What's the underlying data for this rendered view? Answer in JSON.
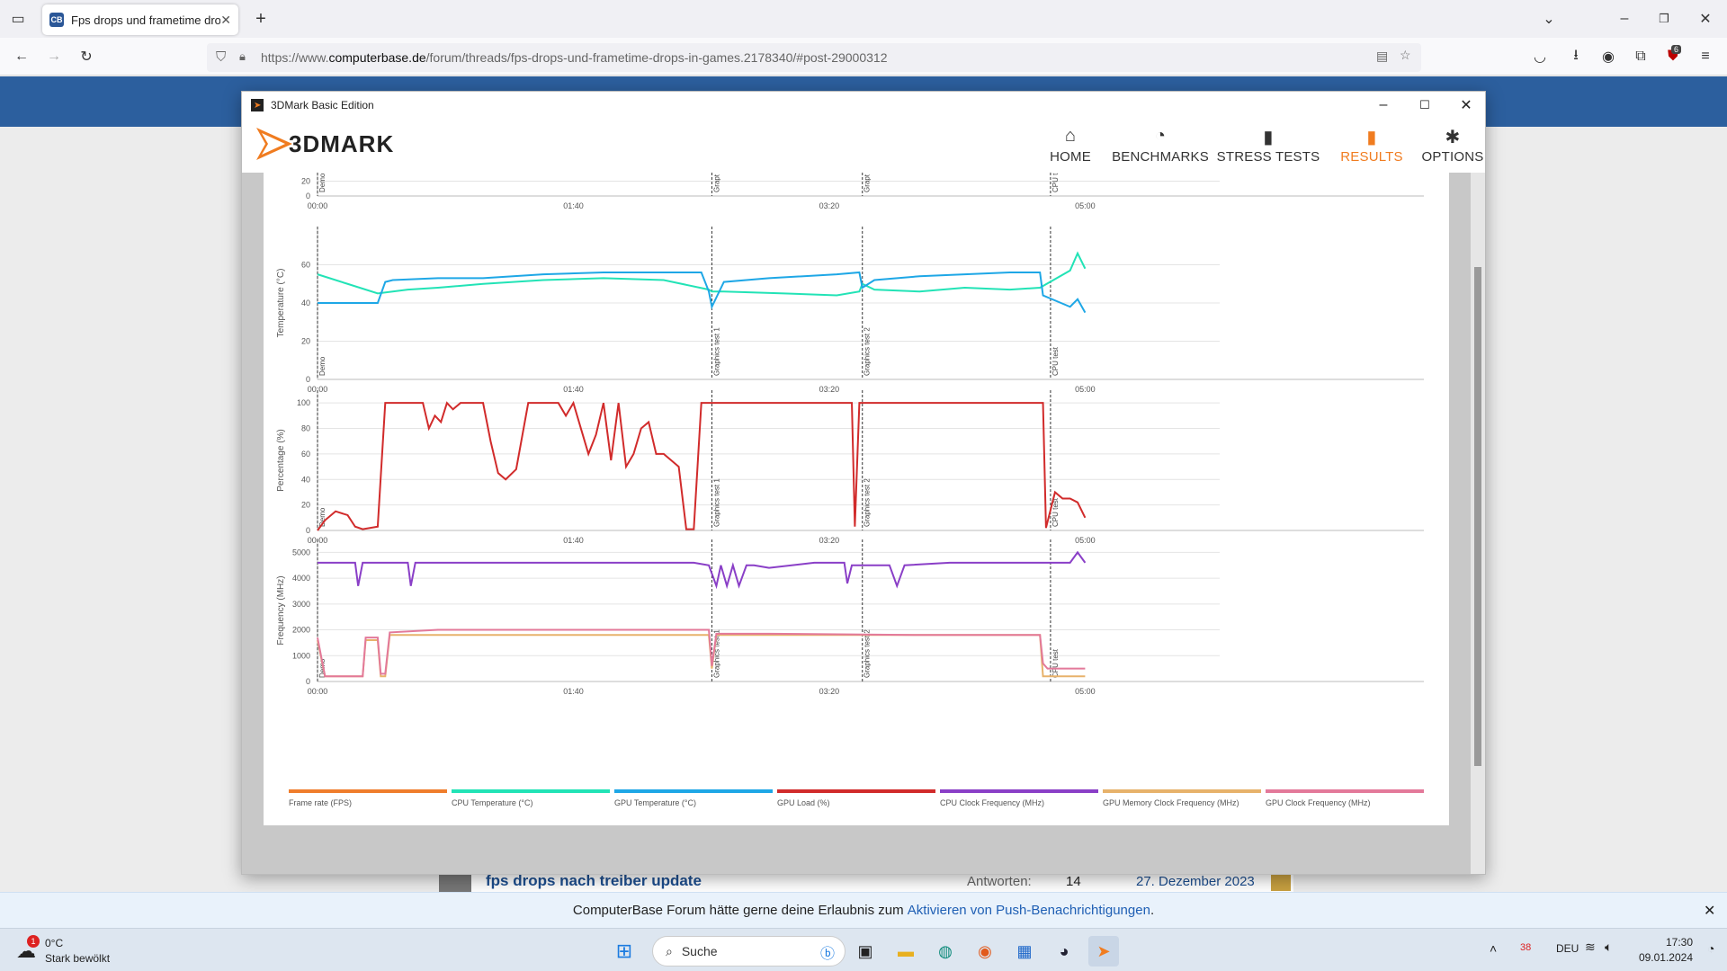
{
  "browser": {
    "tab_title": "Fps drops und frametime drop",
    "url_prefix": "https://www.",
    "url_domain": "computerbase.de",
    "url_path": "/forum/threads/fps-drops-und-frametime-drops-in-games.2178340/#post-29000312",
    "badge": "6"
  },
  "window": {
    "title": "3DMark Basic Edition",
    "logo": "3DMARK"
  },
  "nav": [
    {
      "label": "HOME",
      "icon": "⌂"
    },
    {
      "label": "BENCHMARKS",
      "icon": "◔"
    },
    {
      "label": "STRESS TESTS",
      "icon": "▮"
    },
    {
      "label": "RESULTS",
      "icon": "▮"
    },
    {
      "label": "OPTIONS",
      "icon": "✱"
    }
  ],
  "chart_data": [
    {
      "type": "line",
      "ylabel": "",
      "ticks_x": [
        "00:00",
        "01:40",
        "03:20",
        "05:00"
      ],
      "yticks": [
        "0",
        "20"
      ],
      "markers": [
        "Demo",
        "Grapt",
        "Grapt",
        "CPU t"
      ]
    },
    {
      "type": "line",
      "ylabel": "Temperature (°C)",
      "ticks_x": [
        "00:00",
        "01:40",
        "03:20",
        "05:00"
      ],
      "yticks": [
        "0",
        "20",
        "40",
        "60"
      ],
      "ylim": [
        0,
        80
      ],
      "markers": [
        "Demo",
        "Graphics test 1",
        "Graphics test 2",
        "CPU test"
      ],
      "series": [
        {
          "name": "CPU Temperature (°C)",
          "color": "#22e3b6",
          "x": [
            0,
            20,
            40,
            60,
            80,
            110,
            150,
            190,
            230,
            260,
            262,
            270,
            310,
            345,
            360,
            362,
            370,
            400,
            430,
            460,
            480,
            500,
            505,
            510
          ],
          "y": [
            55,
            50,
            45,
            47,
            48,
            50,
            52,
            53,
            52,
            47,
            46,
            46,
            45,
            44,
            46,
            50,
            47,
            46,
            48,
            47,
            48,
            57,
            66,
            58
          ]
        },
        {
          "name": "GPU Temperature (°C)",
          "color": "#1ea7e6",
          "x": [
            0,
            20,
            40,
            45,
            50,
            80,
            110,
            150,
            190,
            255,
            260,
            262,
            270,
            300,
            345,
            360,
            362,
            370,
            400,
            460,
            480,
            482,
            500,
            505,
            510
          ],
          "y": [
            40,
            40,
            40,
            51,
            52,
            53,
            53,
            55,
            56,
            56,
            46,
            38,
            51,
            53,
            55,
            56,
            48,
            52,
            54,
            56,
            56,
            44,
            38,
            42,
            35
          ]
        }
      ]
    },
    {
      "type": "line",
      "ylabel": "Percentage (%)",
      "ticks_x": [
        "00:00",
        "01:40",
        "03:20",
        "05:00"
      ],
      "yticks": [
        "0",
        "20",
        "40",
        "60",
        "80",
        "100"
      ],
      "ylim": [
        0,
        110
      ],
      "markers": [
        "Demo",
        "Graphics test 1",
        "Graphics test 2",
        "CPU test"
      ],
      "series": [
        {
          "name": "GPU Load (%)",
          "color": "#d12b2b",
          "x": [
            0,
            5,
            12,
            20,
            25,
            30,
            40,
            45,
            50,
            55,
            60,
            70,
            74,
            78,
            82,
            86,
            90,
            95,
            100,
            110,
            115,
            120,
            125,
            132,
            140,
            150,
            160,
            165,
            170,
            175,
            180,
            185,
            190,
            195,
            200,
            205,
            210,
            215,
            220,
            225,
            230,
            235,
            240,
            245,
            250,
            255,
            260,
            262,
            265,
            270,
            290,
            310,
            345,
            355,
            357,
            360,
            362,
            400,
            440,
            470,
            480,
            482,
            484,
            490,
            495,
            500,
            505,
            510
          ],
          "y": [
            0,
            8,
            15,
            12,
            3,
            1,
            3,
            100,
            100,
            100,
            100,
            100,
            80,
            90,
            85,
            100,
            95,
            100,
            100,
            100,
            70,
            45,
            40,
            48,
            100,
            100,
            100,
            90,
            100,
            80,
            60,
            75,
            100,
            55,
            100,
            50,
            60,
            80,
            85,
            60,
            60,
            55,
            50,
            1,
            1,
            100,
            100,
            100,
            100,
            100,
            100,
            100,
            100,
            100,
            3,
            100,
            100,
            100,
            100,
            100,
            100,
            100,
            2,
            30,
            25,
            25,
            22,
            10
          ]
        }
      ]
    },
    {
      "type": "line",
      "ylabel": "Frequency (MHz)",
      "ticks_x": [
        "00:00",
        "01:40",
        "03:20",
        "05:00"
      ],
      "yticks": [
        "0",
        "1000",
        "2000",
        "3000",
        "4000",
        "5000"
      ],
      "ylim": [
        0,
        5500
      ],
      "markers": [
        "Demo",
        "Graphics test 1",
        "Graphics test 2",
        "CPU test"
      ],
      "series": [
        {
          "name": "CPU Clock Frequency (MHz)",
          "color": "#8a3fc7",
          "x": [
            0,
            20,
            25,
            27,
            30,
            60,
            62,
            65,
            100,
            150,
            200,
            250,
            260,
            265,
            268,
            272,
            276,
            280,
            285,
            290,
            300,
            330,
            350,
            352,
            355,
            380,
            385,
            390,
            420,
            460,
            480,
            500,
            505,
            510
          ],
          "y": [
            4600,
            4600,
            4600,
            3700,
            4600,
            4600,
            3700,
            4600,
            4600,
            4600,
            4600,
            4600,
            4500,
            3700,
            4500,
            3700,
            4500,
            3700,
            4500,
            4500,
            4400,
            4600,
            4600,
            3800,
            4500,
            4500,
            3700,
            4500,
            4600,
            4600,
            4600,
            4600,
            5000,
            4600
          ]
        },
        {
          "name": "GPU Memory Clock Frequency (MHz)",
          "color": "#e7b26b",
          "x": [
            0,
            5,
            30,
            32,
            40,
            42,
            45,
            48,
            260,
            262,
            265,
            300,
            400,
            480,
            482,
            485,
            510
          ],
          "y": [
            1600,
            200,
            200,
            1600,
            1600,
            200,
            200,
            1800,
            1800,
            500,
            1800,
            1800,
            1800,
            1800,
            200,
            200,
            200
          ]
        },
        {
          "name": "GPU Clock Frequency (MHz)",
          "color": "#e3799a",
          "x": [
            0,
            5,
            30,
            32,
            40,
            42,
            45,
            48,
            80,
            150,
            200,
            260,
            262,
            265,
            300,
            400,
            480,
            482,
            485,
            510
          ],
          "y": [
            1700,
            200,
            200,
            1700,
            1700,
            300,
            300,
            1900,
            2000,
            2000,
            2000,
            2000,
            600,
            1850,
            1850,
            1800,
            1800,
            700,
            500,
            500
          ]
        }
      ]
    }
  ],
  "legend": [
    {
      "label": "Frame rate (FPS)",
      "color": "#ef7d2c"
    },
    {
      "label": "CPU Temperature (°C)",
      "color": "#22e3b6"
    },
    {
      "label": "GPU Temperature (°C)",
      "color": "#1ea7e6"
    },
    {
      "label": "GPU Load (%)",
      "color": "#d12b2b"
    },
    {
      "label": "CPU Clock Frequency (MHz)",
      "color": "#8a3fc7"
    },
    {
      "label": "GPU Memory Clock Frequency (MHz)",
      "color": "#e7b26b"
    },
    {
      "label": "GPU Clock Frequency (MHz)",
      "color": "#e3799a"
    }
  ],
  "forum": {
    "thread": "fps drops nach treiber update",
    "answers_label": "Antworten:",
    "answers": "14",
    "date": "27. Dezember 2023"
  },
  "notification": {
    "text": "ComputerBase Forum hätte gerne deine Erlaubnis zum ",
    "link": "Aktivieren von Push-Benachrichtigungen",
    "end": "."
  },
  "taskbar": {
    "weather_temp": "0°C",
    "weather_desc": "Stark bewölkt",
    "search": "Suche",
    "lang": "DEU",
    "time": "17:30",
    "date": "09.01.2024",
    "tray_count": "38",
    "weather_badge": "1"
  }
}
